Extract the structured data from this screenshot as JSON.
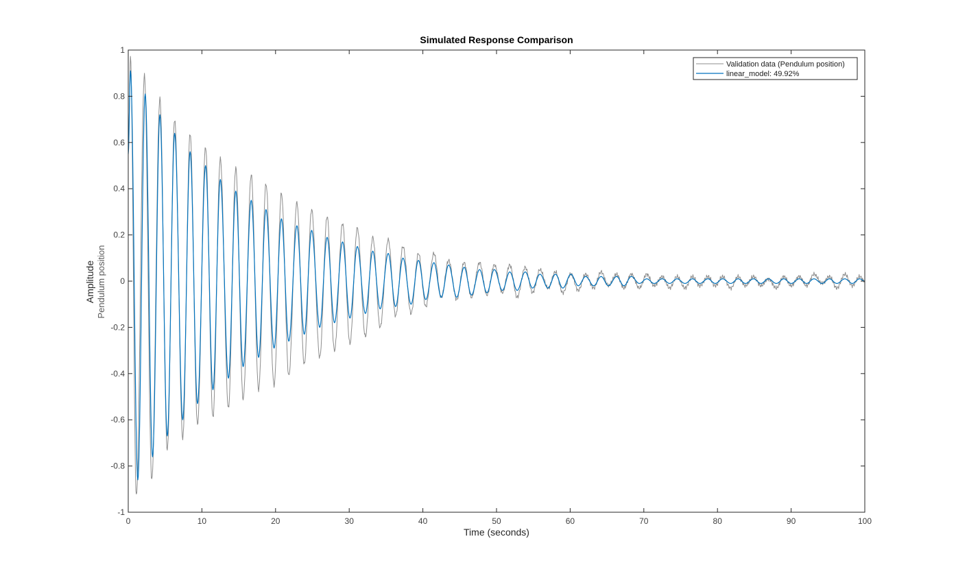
{
  "chart_data": {
    "type": "line",
    "title": "Simulated Response Comparison",
    "xlabel": "Time (seconds)",
    "ylabel": "Amplitude",
    "ylabel_sub": "Pendulum position",
    "xlim": [
      0,
      100
    ],
    "ylim": [
      -1,
      1
    ],
    "xticks": [
      0,
      10,
      20,
      30,
      40,
      50,
      60,
      70,
      80,
      90,
      100
    ],
    "yticks": [
      -1,
      -0.8,
      -0.6,
      -0.4,
      -0.2,
      0,
      0.2,
      0.4,
      0.6,
      0.8,
      1
    ],
    "xtick_labels": [
      "0",
      "10",
      "20",
      "30",
      "40",
      "50",
      "60",
      "70",
      "80",
      "90",
      "100"
    ],
    "ytick_labels": [
      "-1",
      "-0.8",
      "-0.6",
      "-0.4",
      "-0.2",
      "0",
      "0.2",
      "0.4",
      "0.6",
      "0.8",
      "1"
    ],
    "grid": false,
    "legend_position": "top-right",
    "series": [
      {
        "name": "Validation data (Pendulum position)",
        "color": "#8c8c8c",
        "period": 2.04,
        "x": [
          0.0,
          0.3,
          1.1,
          2.2,
          3.2,
          4.3,
          5.3,
          6.3,
          7.4,
          8.4,
          9.4,
          10.5,
          11.5,
          12.5,
          13.6,
          14.6,
          15.6,
          16.7,
          17.7,
          18.7,
          19.8,
          20.8,
          21.8,
          22.9,
          23.9,
          24.9,
          26.0,
          27.0,
          28.0,
          29.1,
          30.1,
          31.1,
          32.2,
          33.2,
          34.2,
          35.3,
          36.3,
          37.3,
          38.4,
          39.4,
          40.4,
          41.5,
          42.5,
          43.5,
          44.6,
          45.6,
          46.6,
          47.7,
          48.7,
          49.7,
          50.8,
          51.8,
          52.8,
          53.9,
          54.9,
          55.9,
          57.0,
          58.0,
          59.0,
          60.1,
          61.1,
          62.1,
          63.2,
          64.2,
          65.2,
          66.3,
          67.3,
          68.3,
          69.4,
          70.4,
          71.4,
          72.5,
          73.5,
          74.5,
          75.6,
          76.6,
          77.6,
          78.7,
          79.7,
          80.7,
          81.8,
          82.8,
          83.8,
          84.9,
          85.9,
          86.9,
          88.0,
          89.0,
          90.0,
          91.1,
          92.1,
          93.1,
          94.2,
          95.2,
          96.2,
          97.3,
          98.3,
          99.3,
          100.0
        ],
        "values": [
          0.55,
          0.97,
          -0.93,
          0.89,
          -0.86,
          0.79,
          -0.73,
          0.7,
          -0.68,
          0.64,
          -0.62,
          0.58,
          -0.59,
          0.53,
          -0.55,
          0.49,
          -0.51,
          0.46,
          -0.47,
          0.42,
          -0.45,
          0.38,
          -0.41,
          0.34,
          -0.36,
          0.31,
          -0.33,
          0.28,
          -0.3,
          0.25,
          -0.27,
          0.23,
          -0.24,
          0.19,
          -0.2,
          0.18,
          -0.15,
          0.15,
          -0.14,
          0.12,
          -0.11,
          0.12,
          -0.07,
          0.09,
          -0.08,
          0.08,
          -0.07,
          0.08,
          -0.06,
          0.07,
          -0.05,
          0.07,
          -0.07,
          0.06,
          -0.05,
          0.05,
          -0.03,
          0.04,
          -0.05,
          0.03,
          -0.04,
          0.03,
          -0.03,
          0.04,
          -0.02,
          0.03,
          -0.03,
          0.03,
          -0.03,
          0.03,
          -0.02,
          0.02,
          -0.03,
          0.02,
          -0.03,
          0.02,
          -0.02,
          0.02,
          -0.02,
          0.02,
          -0.03,
          0.02,
          -0.02,
          0.02,
          -0.02,
          0.01,
          -0.03,
          0.02,
          -0.02,
          0.02,
          -0.02,
          0.03,
          -0.01,
          0.02,
          -0.03,
          0.03,
          -0.02,
          0.02,
          0.0
        ]
      },
      {
        "name": "linear_model:  49.92%",
        "color": "#0072bd",
        "period": 2.04,
        "x": [
          0.0,
          0.3,
          1.3,
          2.3,
          3.3,
          4.3,
          5.3,
          6.3,
          7.4,
          8.4,
          9.4,
          10.5,
          11.5,
          12.5,
          13.6,
          14.6,
          15.6,
          16.7,
          17.7,
          18.7,
          19.8,
          20.8,
          21.8,
          22.9,
          23.9,
          24.9,
          26.0,
          27.0,
          28.0,
          29.1,
          30.1,
          31.1,
          32.2,
          33.2,
          34.2,
          35.3,
          36.3,
          37.3,
          38.4,
          39.4,
          40.4,
          41.5,
          42.5,
          43.5,
          44.6,
          45.6,
          46.6,
          47.7,
          48.7,
          49.7,
          50.8,
          51.8,
          52.8,
          53.9,
          54.9,
          55.9,
          57.0,
          58.0,
          59.0,
          60.1,
          61.1,
          62.1,
          63.2,
          64.2,
          65.2,
          66.3,
          67.3,
          68.3,
          69.4,
          70.4,
          71.4,
          72.5,
          73.5,
          74.5,
          75.6,
          76.6,
          77.6,
          78.7,
          79.7,
          80.7,
          81.8,
          82.8,
          83.8,
          84.9,
          85.9,
          86.9,
          88.0,
          89.0,
          90.0,
          91.1,
          92.1,
          93.1,
          94.2,
          95.2,
          96.2,
          97.3,
          98.3,
          99.3,
          100.0
        ],
        "values": [
          0.55,
          0.91,
          -0.86,
          0.81,
          -0.76,
          0.72,
          -0.67,
          0.64,
          -0.6,
          0.56,
          -0.53,
          0.5,
          -0.47,
          0.44,
          -0.42,
          0.39,
          -0.37,
          0.35,
          -0.33,
          0.31,
          -0.29,
          0.27,
          -0.26,
          0.24,
          -0.23,
          0.22,
          -0.2,
          0.19,
          -0.18,
          0.17,
          -0.16,
          0.15,
          -0.14,
          0.13,
          -0.12,
          0.12,
          -0.11,
          0.1,
          -0.1,
          0.09,
          -0.08,
          0.08,
          -0.07,
          0.07,
          -0.07,
          0.06,
          -0.06,
          0.05,
          -0.05,
          0.05,
          -0.04,
          0.04,
          -0.04,
          0.04,
          -0.03,
          0.03,
          -0.03,
          0.03,
          -0.03,
          0.03,
          -0.02,
          0.02,
          -0.02,
          0.02,
          -0.02,
          0.02,
          -0.02,
          0.02,
          -0.01,
          0.01,
          -0.01,
          0.01,
          -0.01,
          0.01,
          -0.01,
          0.01,
          -0.01,
          0.01,
          -0.01,
          0.01,
          -0.01,
          0.01,
          -0.01,
          0.01,
          -0.01,
          0.01,
          -0.01,
          0.01,
          -0.01,
          0.01,
          -0.01,
          0.01,
          -0.01,
          0.01,
          -0.01,
          0.01,
          -0.01,
          0.01,
          0.0
        ]
      }
    ]
  }
}
